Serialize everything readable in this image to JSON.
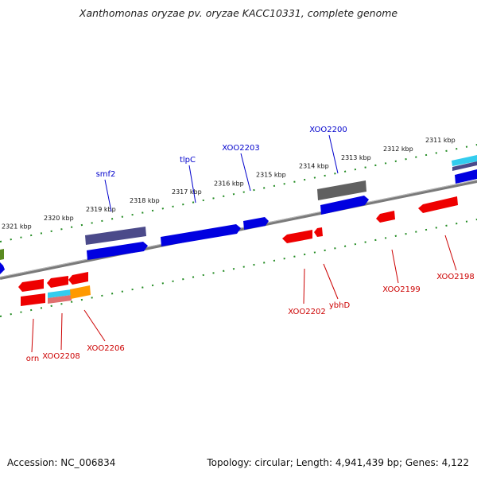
{
  "title": "Xanthomonas oryzae pv. oryzae KACC10331, complete genome",
  "footer": {
    "accession": "Accession: NC_006834",
    "topology": "Topology: circular; Length: 4,941,439 bp; Genes: 4,122"
  },
  "scale_labels": [
    "2321 kbp",
    "2320 kbp",
    "2319 kbp",
    "2318 kbp",
    "2317 kbp",
    "2316 kbp",
    "2315 kbp",
    "2314 kbp",
    "2313 kbp",
    "2312 kbp",
    "2311 kbp"
  ],
  "genes_forward": [
    "smf2",
    "tlpC",
    "XOO2203",
    "XOO2200"
  ],
  "genes_reverse": [
    "orn",
    "XOO2208",
    "XOO2206",
    "XOO2202",
    "ybhD",
    "XOO2199",
    "XOO2198"
  ],
  "colors": {
    "forward_label": "#0000cc",
    "reverse_label": "#cc0000",
    "forward_gene": "#0000e0",
    "reverse_gene": "#ee0000",
    "tick": "#228B22",
    "backbone": "#808080",
    "slate": "#4b4a8a",
    "gray_gene": "#606060",
    "cyan_gene": "#33ccee",
    "orange_gene": "#ff9900",
    "olive_gene": "#5a8a20"
  }
}
